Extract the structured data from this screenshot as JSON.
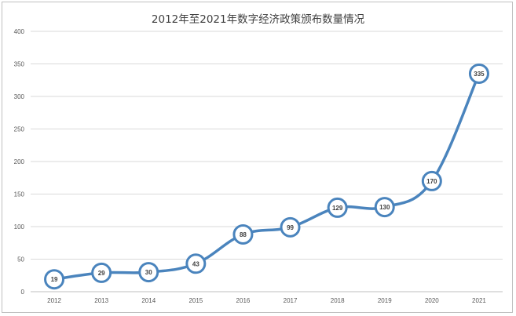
{
  "chart_data": {
    "type": "line",
    "title": "2012年至2021年数字经济政策颁布数量情况",
    "xlabel": "",
    "ylabel": "",
    "categories": [
      "2012",
      "2013",
      "2014",
      "2015",
      "2016",
      "2017",
      "2018",
      "2019",
      "2020",
      "2021"
    ],
    "series": [
      {
        "values": [
          19,
          29,
          30,
          43,
          88,
          99,
          129,
          130,
          170,
          335
        ]
      }
    ],
    "ylim": [
      0,
      400
    ],
    "yticks": [
      "0",
      "50",
      "100",
      "150",
      "200",
      "250",
      "300",
      "350",
      "400"
    ],
    "grid": true,
    "legend": "none",
    "line_color": "#4a84bd",
    "marker_fill": "#ffffff"
  }
}
